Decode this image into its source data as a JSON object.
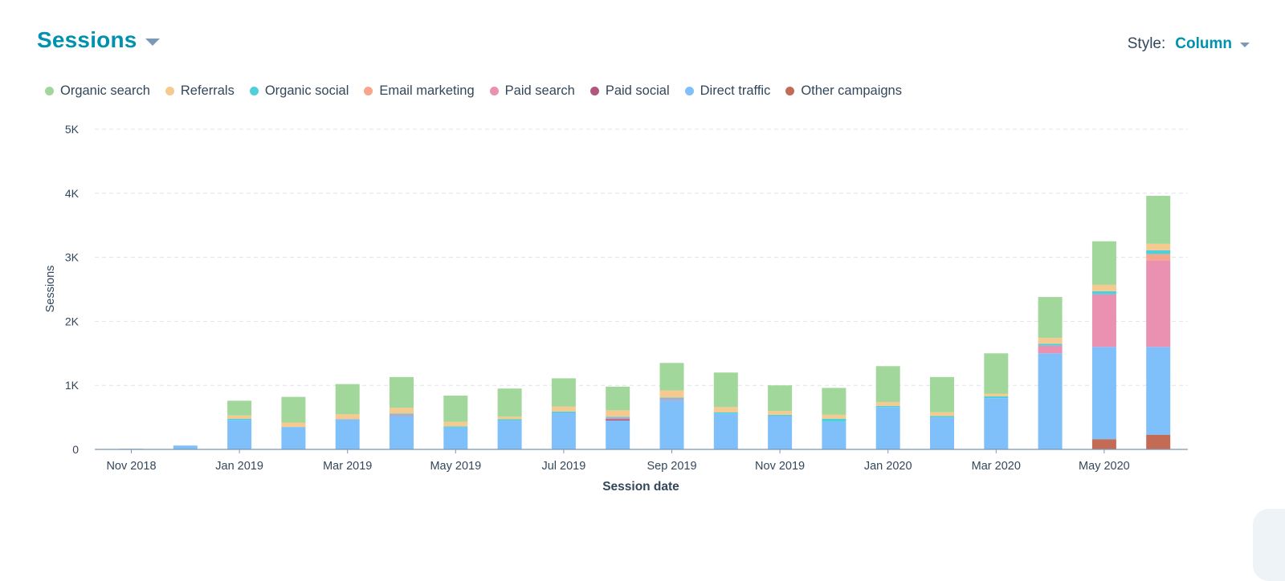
{
  "header": {
    "title": "Sessions"
  },
  "style_selector": {
    "label": "Style:",
    "value": "Column"
  },
  "colors": {
    "Organic search": "#a2d79b",
    "Referrals": "#f6c98e",
    "Organic social": "#4fcfdc",
    "Email marketing": "#f8a68b",
    "Paid search": "#ea90b1",
    "Paid social": "#b0577f",
    "Direct traffic": "#80c0fa",
    "Other campaigns": "#c46b56"
  },
  "chart_data": {
    "type": "bar",
    "stacked": true,
    "xlabel": "Session date",
    "ylabel": "Sessions",
    "ylim": [
      0,
      5000
    ],
    "y_ticks": [
      "0",
      "1K",
      "2K",
      "3K",
      "4K",
      "5K"
    ],
    "categories": [
      "Nov 2018",
      "Dec 2018",
      "Jan 2019",
      "Feb 2019",
      "Mar 2019",
      "Apr 2019",
      "May 2019",
      "Jun 2019",
      "Jul 2019",
      "Aug 2019",
      "Sep 2019",
      "Oct 2019",
      "Nov 2019",
      "Dec 2019",
      "Jan 2020",
      "Feb 2020",
      "Mar 2020",
      "Apr 2020",
      "May 2020",
      "Jun 2020"
    ],
    "x_tick_labels": [
      "Nov 2018",
      "",
      "Jan 2019",
      "",
      "Mar 2019",
      "",
      "May 2019",
      "",
      "Jul 2019",
      "",
      "Sep 2019",
      "",
      "Nov 2019",
      "",
      "Jan 2020",
      "",
      "Mar 2020",
      "",
      "May 2020",
      ""
    ],
    "legend_position": "top-left",
    "grid": true,
    "series": [
      {
        "name": "Other campaigns",
        "values": [
          0,
          0,
          0,
          0,
          0,
          0,
          0,
          0,
          0,
          0,
          0,
          0,
          0,
          0,
          0,
          0,
          0,
          0,
          160,
          230
        ]
      },
      {
        "name": "Direct traffic",
        "values": [
          10,
          60,
          460,
          350,
          470,
          520,
          340,
          450,
          570,
          450,
          770,
          560,
          520,
          430,
          660,
          500,
          800,
          1500,
          1440,
          1370
        ]
      },
      {
        "name": "Paid social",
        "values": [
          0,
          0,
          0,
          0,
          0,
          0,
          0,
          0,
          0,
          20,
          0,
          0,
          0,
          0,
          0,
          0,
          0,
          0,
          0,
          0
        ]
      },
      {
        "name": "Paid search",
        "values": [
          0,
          0,
          0,
          0,
          0,
          20,
          0,
          0,
          0,
          20,
          20,
          0,
          0,
          0,
          0,
          0,
          0,
          120,
          820,
          1350
        ]
      },
      {
        "name": "Email marketing",
        "values": [
          0,
          0,
          0,
          0,
          0,
          0,
          0,
          0,
          0,
          0,
          0,
          0,
          0,
          0,
          0,
          0,
          0,
          0,
          0,
          100
        ]
      },
      {
        "name": "Organic social",
        "values": [
          0,
          0,
          20,
          0,
          0,
          20,
          20,
          20,
          20,
          20,
          20,
          20,
          20,
          50,
          20,
          20,
          30,
          30,
          50,
          60
        ]
      },
      {
        "name": "Referrals",
        "values": [
          0,
          0,
          50,
          70,
          80,
          90,
          70,
          40,
          80,
          100,
          110,
          80,
          60,
          60,
          60,
          60,
          40,
          90,
          100,
          100
        ]
      },
      {
        "name": "Organic search",
        "values": [
          0,
          0,
          230,
          400,
          470,
          480,
          410,
          440,
          440,
          370,
          430,
          540,
          400,
          420,
          560,
          550,
          630,
          640,
          680,
          750
        ]
      }
    ]
  },
  "legend": [
    "Organic search",
    "Referrals",
    "Organic social",
    "Email marketing",
    "Paid search",
    "Paid social",
    "Direct traffic",
    "Other campaigns"
  ]
}
